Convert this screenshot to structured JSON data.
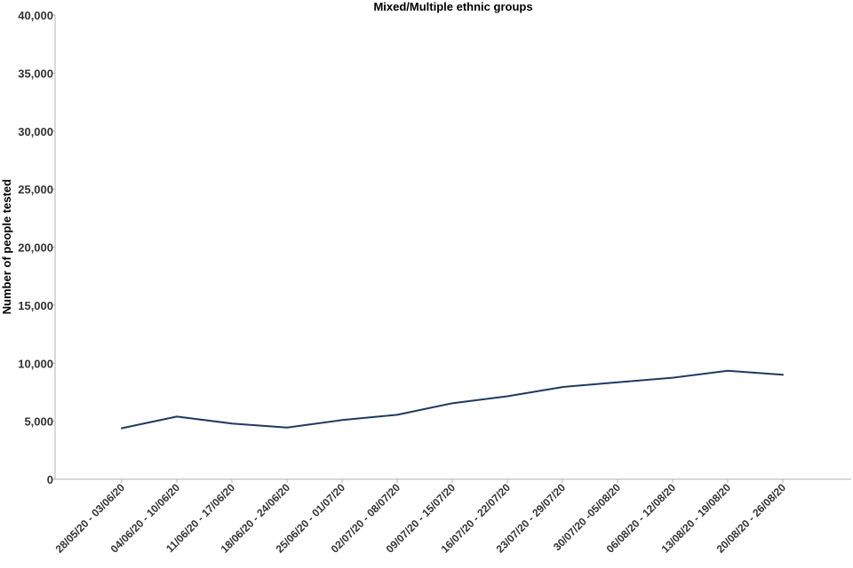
{
  "chart_data": {
    "type": "line",
    "title": "Mixed/Multiple ethnic groups",
    "xlabel": "",
    "ylabel": "Number of people tested",
    "ylim": [
      0,
      40000
    ],
    "yticks": [
      "0",
      "5,000",
      "10,000",
      "15,000",
      "20,000",
      "25,000",
      "30,000",
      "35,000",
      "40,000"
    ],
    "categories": [
      "28/05/20 - 03/06/20",
      "04/06/20 - 10/06/20",
      "11/06/20 - 17/06/20",
      "18/06/20 - 24/06/20",
      "25/06/20 - 01/07/20",
      "02/07/20 - 08/07/20",
      "09/07/20 - 15/07/20",
      "16/07/20 - 22/07/20",
      "23/07/20 - 29/07/20",
      "30/07/20 -05/08/20",
      "06/08/20 - 12/08/20",
      "13/08/20 - 19/08/20",
      "20/08/20 - 26/08/20"
    ],
    "series": [
      {
        "values": [
          4400,
          5400,
          4800,
          4450,
          5100,
          5550,
          6550,
          7150,
          7950,
          8350,
          8750,
          9350,
          9000
        ],
        "color": "#1f3a60"
      }
    ],
    "grid": false,
    "legend": "none"
  }
}
